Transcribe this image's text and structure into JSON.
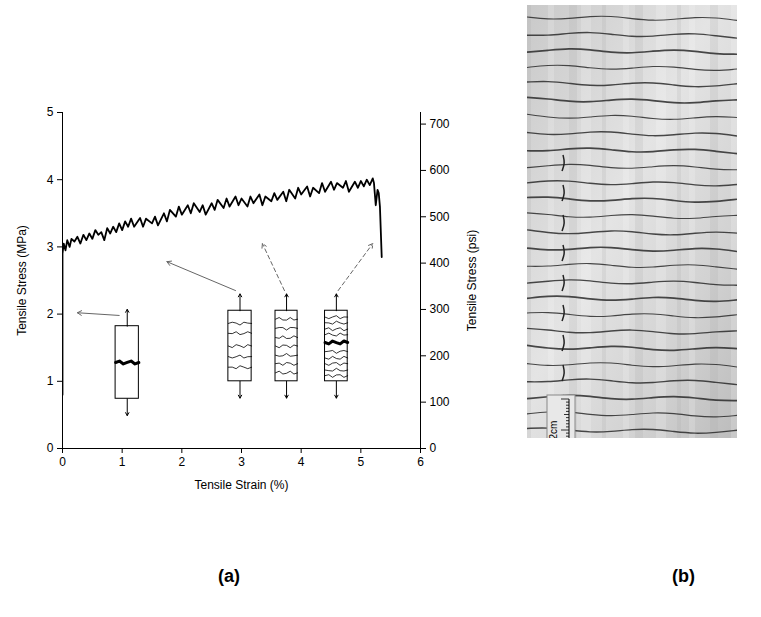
{
  "chart_data": {
    "type": "line",
    "x": [
      0,
      0,
      0.02,
      0.05,
      0.08,
      0.12,
      0.15,
      0.2,
      0.25,
      0.3,
      0.35,
      0.4,
      0.45,
      0.5,
      0.55,
      0.6,
      0.65,
      0.7,
      0.75,
      0.8,
      0.85,
      0.9,
      0.95,
      1.0,
      1.05,
      1.1,
      1.15,
      1.2,
      1.3,
      1.35,
      1.4,
      1.5,
      1.55,
      1.6,
      1.7,
      1.75,
      1.8,
      1.9,
      1.95,
      2.0,
      2.1,
      2.15,
      2.2,
      2.3,
      2.35,
      2.4,
      2.5,
      2.55,
      2.6,
      2.7,
      2.75,
      2.8,
      2.9,
      2.95,
      3.0,
      3.1,
      3.15,
      3.2,
      3.3,
      3.35,
      3.4,
      3.5,
      3.55,
      3.6,
      3.7,
      3.75,
      3.8,
      3.9,
      3.95,
      4.0,
      4.1,
      4.15,
      4.2,
      4.3,
      4.35,
      4.4,
      4.5,
      4.55,
      4.6,
      4.7,
      4.75,
      4.8,
      4.9,
      4.95,
      5.0,
      5.05,
      5.1,
      5.15,
      5.2,
      5.22,
      5.25,
      5.28,
      5.3,
      5.32,
      5.35
    ],
    "values": [
      0.8,
      2.9,
      3.05,
      2.95,
      3.1,
      3.0,
      3.12,
      3.08,
      3.15,
      3.05,
      3.18,
      3.1,
      3.2,
      3.12,
      3.25,
      3.18,
      3.22,
      3.1,
      3.28,
      3.2,
      3.3,
      3.22,
      3.35,
      3.25,
      3.38,
      3.3,
      3.42,
      3.3,
      3.43,
      3.3,
      3.42,
      3.35,
      3.45,
      3.32,
      3.5,
      3.38,
      3.55,
      3.45,
      3.6,
      3.48,
      3.62,
      3.5,
      3.65,
      3.52,
      3.62,
      3.48,
      3.65,
      3.55,
      3.7,
      3.58,
      3.72,
      3.6,
      3.75,
      3.62,
      3.72,
      3.6,
      3.75,
      3.65,
      3.78,
      3.62,
      3.75,
      3.68,
      3.8,
      3.7,
      3.82,
      3.68,
      3.85,
      3.72,
      3.88,
      3.78,
      3.9,
      3.75,
      3.88,
      3.8,
      3.95,
      3.82,
      3.97,
      3.85,
      3.95,
      3.88,
      3.98,
      3.82,
      3.97,
      3.88,
      3.98,
      3.9,
      4.0,
      3.92,
      4.02,
      3.95,
      3.62,
      3.85,
      3.8,
      3.6,
      2.85
    ],
    "color": "#000000",
    "line_style": "solid",
    "xlabel": "Tensile Strain (%)",
    "ylabel": "Tensile Stress (MPa)",
    "y2label": "Tensile Stress (psi)",
    "xlim": [
      0,
      6
    ],
    "xticks": [
      0,
      1,
      2,
      3,
      4,
      5,
      6
    ],
    "ylim": [
      0,
      5
    ],
    "yticks": [
      0,
      1,
      2,
      3,
      4,
      5
    ],
    "y2lim": [
      0,
      725
    ],
    "y2ticks": [
      0,
      100,
      200,
      300,
      400,
      500,
      600,
      700
    ],
    "grid": false
  },
  "panels": [
    "(a)",
    "(b)"
  ],
  "photo": {
    "scale_bar_label": "2cm"
  }
}
